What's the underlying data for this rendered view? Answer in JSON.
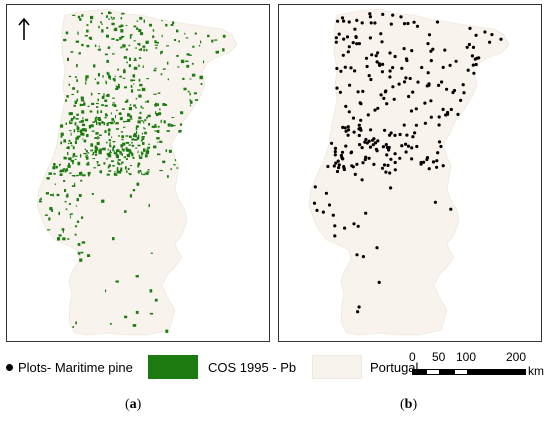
{
  "panels": [
    {
      "id": "a",
      "label_prefix": "(",
      "label_letter": "a",
      "label_suffix": ")"
    },
    {
      "id": "b",
      "label_prefix": "(",
      "label_letter": "b",
      "label_suffix": ")"
    }
  ],
  "legend": {
    "plots_label": "Plots- Maritime pine",
    "cos_label": "COS 1995  - Pb",
    "portugal_label": "Portugal"
  },
  "scalebar": {
    "ticks": [
      "0",
      "50",
      "100",
      "200"
    ],
    "unit": "km"
  },
  "colors": {
    "land": "#f8f3ec",
    "pine": "#1b7a10",
    "plot": "#000000",
    "border": "#333333"
  },
  "icons": [
    "north-arrow-icon"
  ]
}
